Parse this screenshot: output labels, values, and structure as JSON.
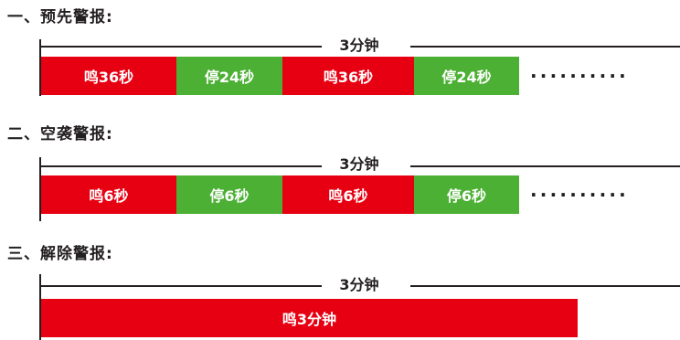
{
  "sections": [
    {
      "title": "一、预先警报:",
      "span_label": "3分钟",
      "segments": [
        {
          "label": "鸣36秒",
          "type": "sound"
        },
        {
          "label": "停24秒",
          "type": "stop"
        },
        {
          "label": "鸣36秒",
          "type": "sound"
        },
        {
          "label": "停24秒",
          "type": "stop"
        }
      ],
      "continuation": "··········"
    },
    {
      "title": "二、空袭警报:",
      "span_label": "3分钟",
      "segments": [
        {
          "label": "鸣6秒",
          "type": "sound"
        },
        {
          "label": "停6秒",
          "type": "stop"
        },
        {
          "label": "鸣6秒",
          "type": "sound"
        },
        {
          "label": "停6秒",
          "type": "stop"
        }
      ],
      "continuation": "··········"
    },
    {
      "title": "三、解除警报:",
      "span_label": "3分钟",
      "segments": [
        {
          "label": "鸣3分钟",
          "type": "sound"
        }
      ]
    }
  ],
  "colors": {
    "sound": "#e60012",
    "stop": "#4cb034",
    "text": "#231f20"
  }
}
